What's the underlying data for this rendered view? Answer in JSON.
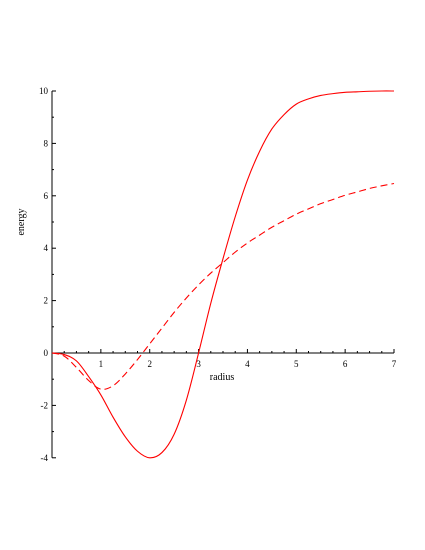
{
  "chart_data": {
    "type": "line",
    "title": "",
    "xlabel": "radius",
    "ylabel": "energy",
    "xlim": [
      0,
      7
    ],
    "ylim": [
      -4,
      10
    ],
    "x_ticks": [
      1,
      2,
      3,
      4,
      5,
      6,
      7
    ],
    "y_ticks": [
      -4,
      -2,
      0,
      2,
      4,
      6,
      8,
      10
    ],
    "grid": false,
    "legend": "none",
    "series": [
      {
        "style": "solid",
        "color": "#ff0000",
        "x": [
          0,
          0.25,
          0.5,
          0.75,
          1,
          1.25,
          1.5,
          1.75,
          2,
          2.25,
          2.5,
          2.75,
          3,
          3.25,
          3.5,
          3.75,
          4,
          4.25,
          4.5,
          4.75,
          5,
          5.25,
          5.5,
          5.75,
          6,
          6.25,
          6.5,
          6.75,
          7
        ],
        "y": [
          0,
          -0.06,
          -0.3,
          -0.9,
          -1.6,
          -2.45,
          -3.2,
          -3.75,
          -4.0,
          -3.8,
          -3.1,
          -1.8,
          0,
          1.9,
          3.6,
          5.2,
          6.6,
          7.7,
          8.55,
          9.1,
          9.5,
          9.7,
          9.83,
          9.9,
          9.95,
          9.97,
          9.99,
          10.0,
          10.0
        ]
      },
      {
        "style": "dashed",
        "color": "#ff0000",
        "x": [
          0,
          0.25,
          0.5,
          0.75,
          1,
          1.25,
          1.5,
          1.75,
          2,
          2.25,
          2.5,
          2.75,
          3,
          3.25,
          3.5,
          3.75,
          4,
          4.25,
          4.5,
          4.75,
          5,
          5.25,
          5.5,
          5.75,
          6,
          6.25,
          6.5,
          6.75,
          7
        ],
        "y": [
          0,
          -0.12,
          -0.55,
          -1.05,
          -1.38,
          -1.25,
          -0.8,
          -0.25,
          0.35,
          0.95,
          1.55,
          2.1,
          2.6,
          3.05,
          3.45,
          3.85,
          4.2,
          4.5,
          4.8,
          5.05,
          5.3,
          5.5,
          5.7,
          5.86,
          6.02,
          6.15,
          6.28,
          6.38,
          6.47
        ]
      }
    ]
  }
}
